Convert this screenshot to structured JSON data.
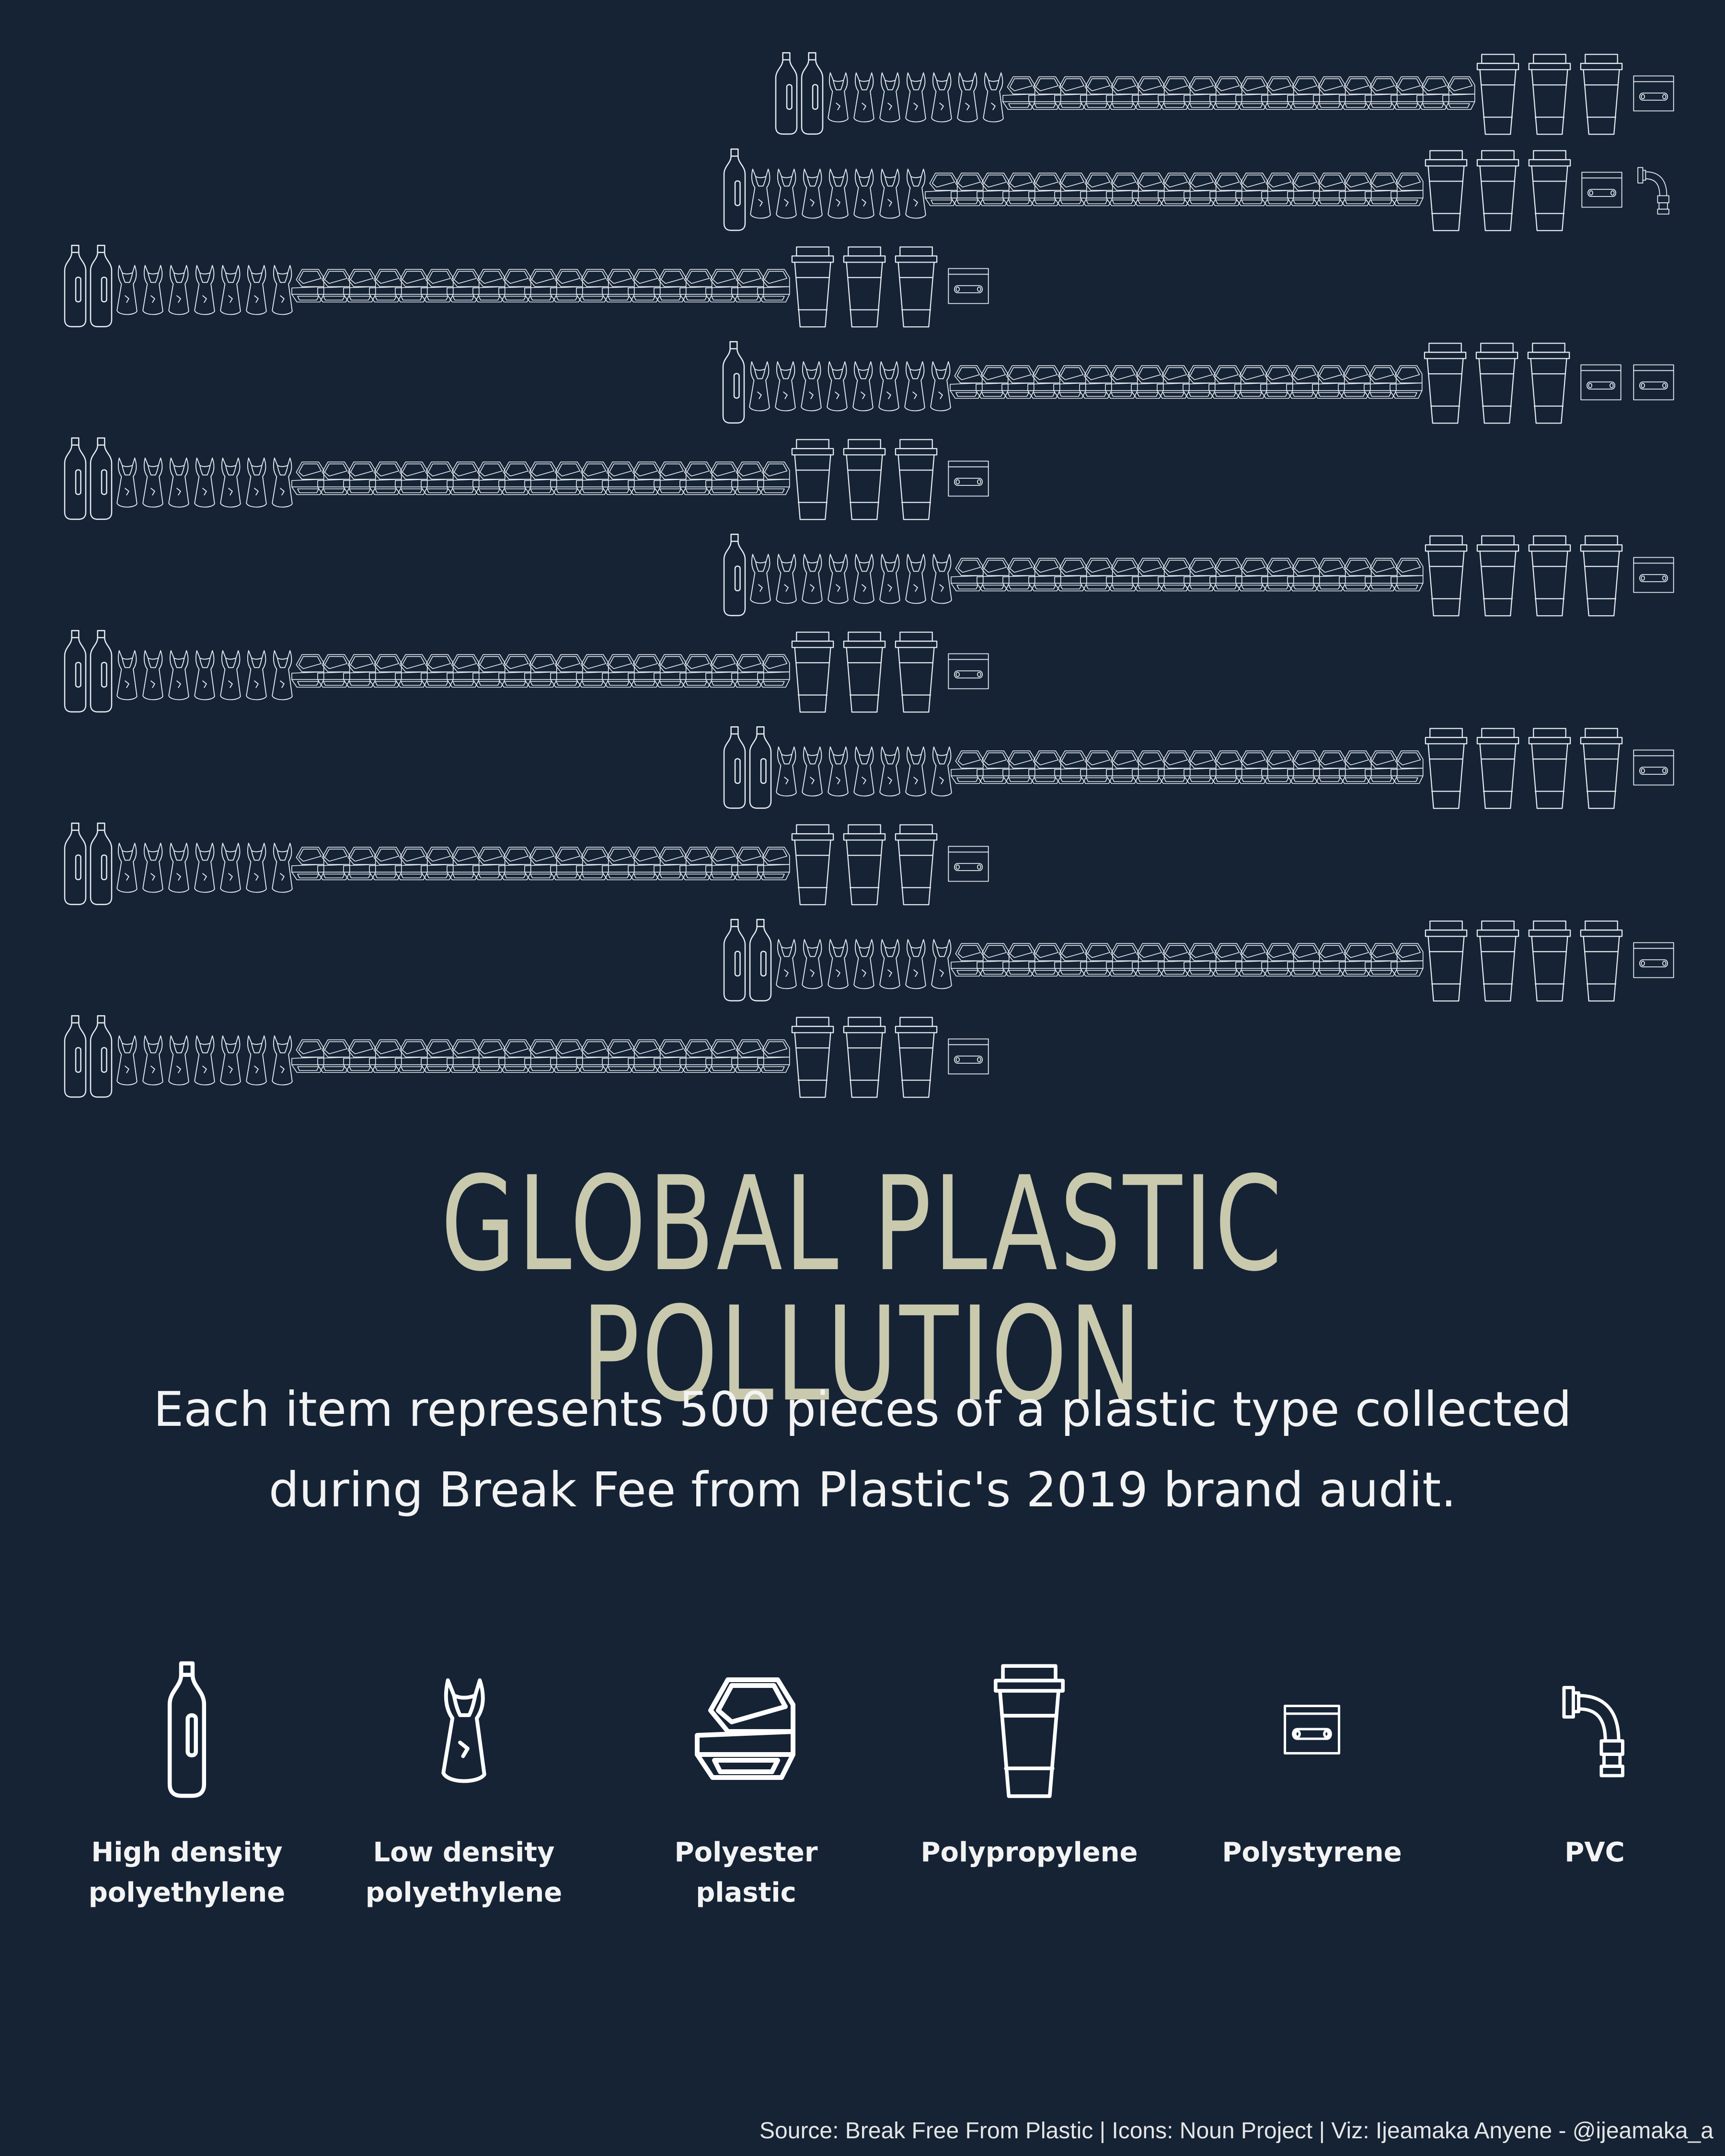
{
  "title": "GLOBAL PLASTIC POLLUTION",
  "subtitle": "Each item represents 500 pieces of a plastic type collected during Break Fee from Plastic's 2019 brand audit.",
  "source": "Source: Break Free From Plastic | Icons: Noun Project | Viz: Ijeamaka Anyene - @ijeamaka_a",
  "colors": {
    "background": "#152335",
    "title": "#c9c9ae",
    "icon_stroke": "#ffffff"
  },
  "legend": [
    {
      "label": "High density\npolyethylene",
      "icon": "bottle-icon"
    },
    {
      "label": "Low density\npolyethylene",
      "icon": "bag-icon"
    },
    {
      "label": "Polyester plastic",
      "icon": "clamshell-icon"
    },
    {
      "label": "Polypropylene",
      "icon": "cup-icon"
    },
    {
      "label": "Polystyrene",
      "icon": "cassette-icon"
    },
    {
      "label": "PVC",
      "icon": "pipe-icon"
    }
  ],
  "chart_data": {
    "type": "pictogram",
    "unit": "Each item represents 500 pieces",
    "categories": [
      "High density polyethylene",
      "Low density polyethylene",
      "Polyester plastic",
      "Polypropylene",
      "Polystyrene",
      "PVC"
    ],
    "rows": [
      {
        "counts": [
          2,
          7,
          18,
          3,
          1,
          0
        ],
        "align": "right"
      },
      {
        "counts": [
          1,
          7,
          19,
          3,
          1,
          1
        ],
        "align": "right"
      },
      {
        "counts": [
          2,
          7,
          19,
          3,
          1,
          0
        ],
        "align": "left"
      },
      {
        "counts": [
          1,
          8,
          18,
          3,
          2,
          0
        ],
        "align": "right"
      },
      {
        "counts": [
          2,
          7,
          19,
          3,
          1,
          0
        ],
        "align": "left"
      },
      {
        "counts": [
          1,
          8,
          18,
          4,
          1,
          0
        ],
        "align": "right"
      },
      {
        "counts": [
          2,
          7,
          19,
          3,
          1,
          0
        ],
        "align": "left"
      },
      {
        "counts": [
          2,
          7,
          18,
          4,
          1,
          0
        ],
        "align": "right"
      },
      {
        "counts": [
          2,
          7,
          19,
          3,
          1,
          0
        ],
        "align": "left"
      },
      {
        "counts": [
          2,
          7,
          18,
          4,
          1,
          0
        ],
        "align": "right"
      },
      {
        "counts": [
          2,
          7,
          19,
          3,
          1,
          0
        ],
        "align": "left"
      }
    ]
  }
}
